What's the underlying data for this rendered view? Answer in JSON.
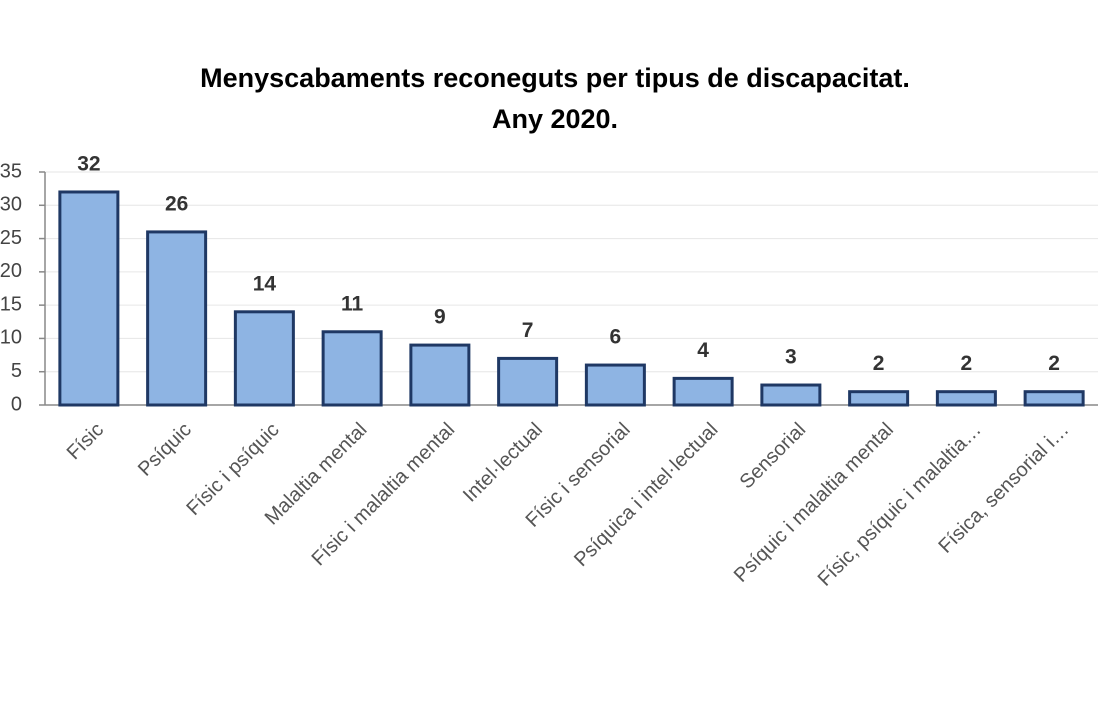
{
  "chart_data": {
    "type": "bar",
    "title": [
      "Menyscabaments reconeguts per tipus de discapacitat.",
      "Any 2020."
    ],
    "categories": [
      "Físic",
      "Psíquic",
      "Físic i psíquic",
      "Malaltia mental",
      "Físic i malaltia mental",
      "Intel·lectual",
      "Físic i sensorial",
      "Psíquica i intel·lectual",
      "Sensorial",
      "Psíquic i malaltia mental",
      "Físic, psíquic i malaltia…",
      "Física, sensorial i…"
    ],
    "values": [
      32,
      26,
      14,
      11,
      9,
      7,
      6,
      4,
      3,
      2,
      2,
      2
    ],
    "color": "#8eb4e3",
    "ylim": [
      0,
      35
    ],
    "yticks": [
      0,
      5,
      10,
      15,
      20,
      25,
      30,
      35
    ],
    "grid": true
  }
}
